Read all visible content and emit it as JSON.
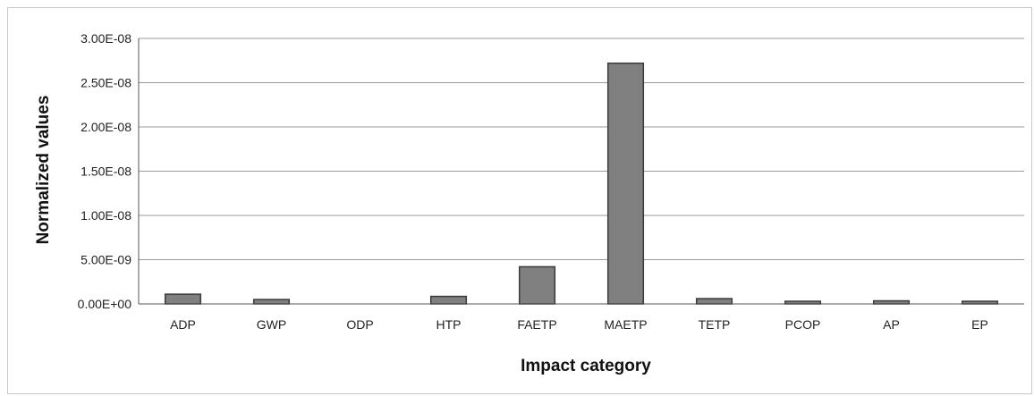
{
  "chart_data": {
    "type": "bar",
    "title": "",
    "xlabel": "Impact category",
    "ylabel": "Normalized values",
    "categories": [
      "ADP",
      "GWP",
      "ODP",
      "HTP",
      "FAETP",
      "MAETP",
      "TETP",
      "PCOP",
      "AP",
      "EP"
    ],
    "values": [
      1.1e-09,
      5e-10,
      0,
      8.5e-10,
      4.2e-09,
      2.72e-08,
      6e-10,
      3e-10,
      3.5e-10,
      3e-10
    ],
    "ylim": [
      0,
      3e-08
    ],
    "yticks": [
      0,
      5e-09,
      1e-08,
      1.5e-08,
      2e-08,
      2.5e-08,
      3e-08
    ],
    "ytick_labels": [
      "0.00E+00",
      "5.00E-09",
      "1.00E-08",
      "1.50E-08",
      "2.00E-08",
      "2.50E-08",
      "3.00E-08"
    ],
    "grid": true,
    "legend": "none",
    "colors": {
      "bar_fill": "#808080",
      "bar_stroke": "#3a3a3a",
      "gridline": "#9a9a9a",
      "axis": "#555555"
    }
  }
}
